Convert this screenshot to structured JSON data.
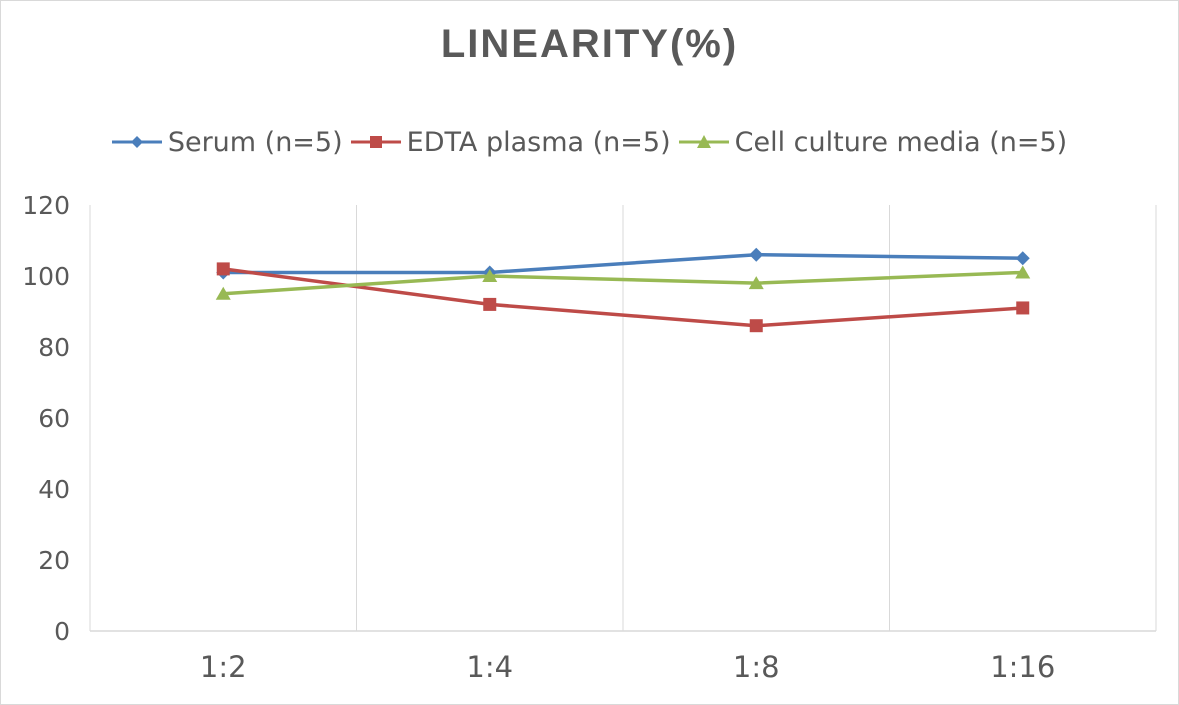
{
  "chart_data": {
    "type": "line",
    "title": "LINEARITY(%)",
    "categories": [
      "1:2",
      "1:4",
      "1:8",
      "1:16"
    ],
    "y_ticks": [
      "0",
      "20",
      "40",
      "60",
      "80",
      "100",
      "120"
    ],
    "ylim": [
      0,
      120
    ],
    "grid": "vertical",
    "legend_position": "top",
    "series": [
      {
        "name": "Serum (n=5)",
        "values": [
          101,
          101,
          106,
          105
        ],
        "color": "#4a7ebb",
        "marker": "diamond"
      },
      {
        "name": "EDTA plasma (n=5)",
        "values": [
          102,
          92,
          86,
          91
        ],
        "color": "#be4b48",
        "marker": "square"
      },
      {
        "name": "Cell culture media (n=5)",
        "values": [
          95,
          100,
          98,
          101
        ],
        "color": "#98b954",
        "marker": "triangle"
      }
    ]
  }
}
